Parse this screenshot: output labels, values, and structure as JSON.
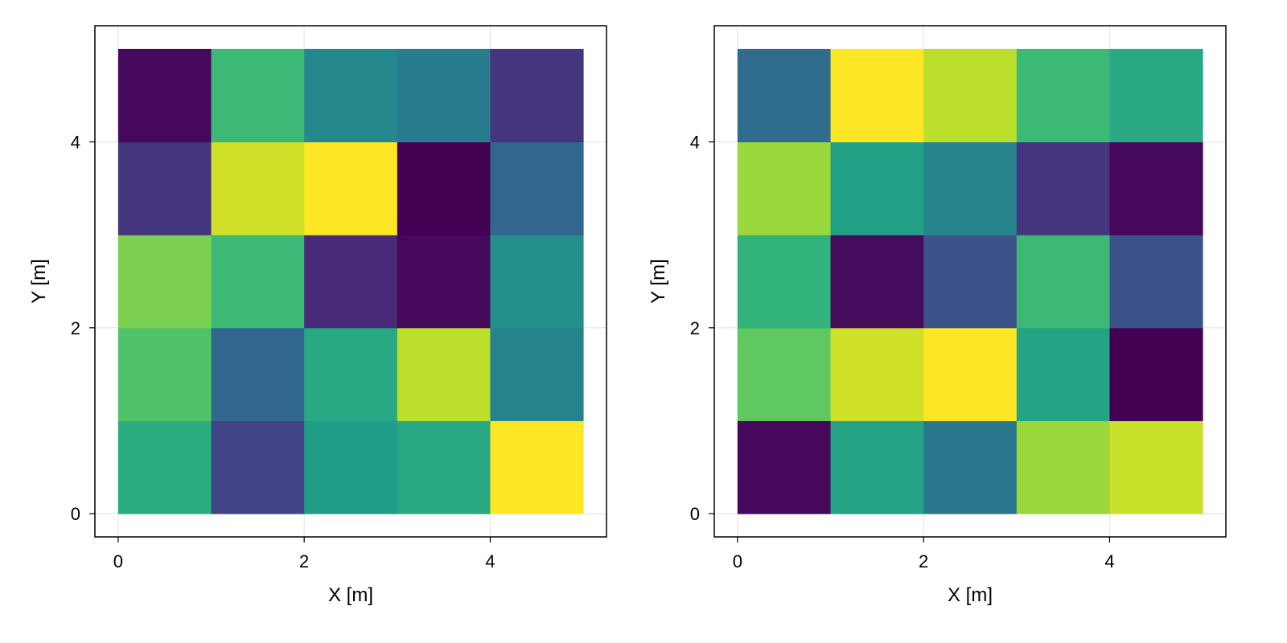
{
  "chart_data": [
    {
      "type": "heatmap",
      "title": "",
      "xlabel": "X [m]",
      "ylabel": "Y [m]",
      "x_edges": [
        0,
        1,
        2,
        3,
        4,
        5
      ],
      "y_edges": [
        0,
        1,
        2,
        3,
        4,
        5
      ],
      "xlim": [
        -0.25,
        5.25
      ],
      "ylim": [
        -0.25,
        5.25
      ],
      "xticks": [
        0,
        2,
        4
      ],
      "yticks": [
        0,
        2,
        4
      ],
      "grid": true,
      "colormap": "viridis",
      "value_range": [
        0,
        1
      ],
      "values_rows_bottom_to_top": [
        [
          0.62,
          0.2,
          0.55,
          0.6,
          1.0
        ],
        [
          0.72,
          0.33,
          0.6,
          0.9,
          0.45
        ],
        [
          0.8,
          0.68,
          0.12,
          0.02,
          0.5
        ],
        [
          0.15,
          0.93,
          1.0,
          0.0,
          0.33
        ],
        [
          0.02,
          0.68,
          0.47,
          0.42,
          0.15
        ]
      ]
    },
    {
      "type": "heatmap",
      "title": "",
      "xlabel": "X [m]",
      "ylabel": "Y [m]",
      "x_edges": [
        0,
        1,
        2,
        3,
        4,
        5
      ],
      "y_edges": [
        0,
        1,
        2,
        3,
        4,
        5
      ],
      "xlim": [
        -0.25,
        5.25
      ],
      "ylim": [
        -0.25,
        5.25
      ],
      "xticks": [
        0,
        2,
        4
      ],
      "yticks": [
        0,
        2,
        4
      ],
      "grid": true,
      "colormap": "viridis",
      "value_range": [
        0,
        1
      ],
      "values_rows_bottom_to_top": [
        [
          0.02,
          0.58,
          0.4,
          0.85,
          0.92
        ],
        [
          0.75,
          0.93,
          1.0,
          0.58,
          0.0
        ],
        [
          0.65,
          0.03,
          0.25,
          0.68,
          0.25
        ],
        [
          0.85,
          0.57,
          0.45,
          0.15,
          0.02
        ],
        [
          0.35,
          1.0,
          0.9,
          0.68,
          0.6
        ]
      ]
    }
  ]
}
